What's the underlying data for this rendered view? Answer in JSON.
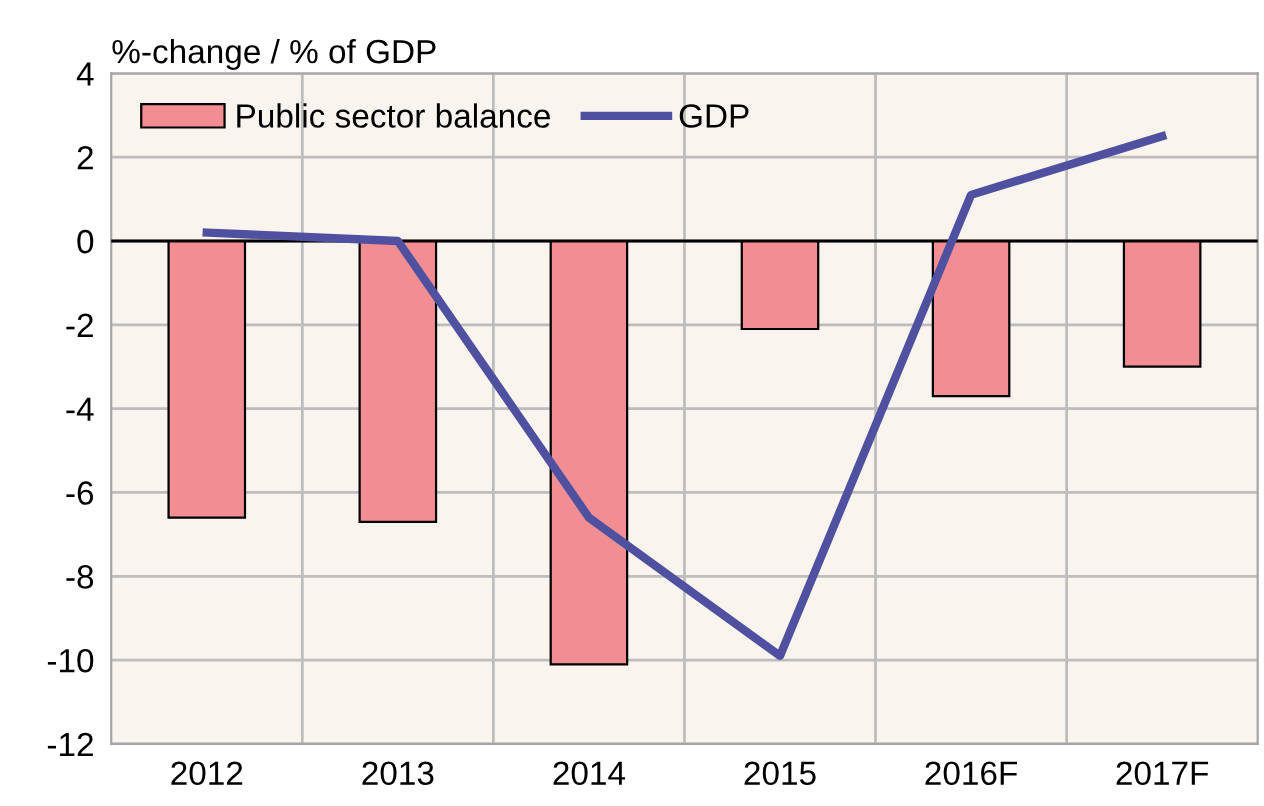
{
  "chart_data": {
    "type": "bar",
    "ylabel": "%-change / % of GDP",
    "categories": [
      "2012",
      "2013",
      "2014",
      "2015",
      "2016F",
      "2017F"
    ],
    "series": [
      {
        "name": "Public sector balance",
        "color": "#f28e93",
        "values": [
          -6.6,
          -6.7,
          -10.1,
          -2.1,
          -3.7,
          -3.0
        ]
      },
      {
        "name": "GDP",
        "type": "line",
        "color": "#4f51a0",
        "values": [
          0.2,
          0.0,
          -6.6,
          -9.9,
          1.1,
          2.5
        ]
      }
    ],
    "ylim": [
      -12,
      4
    ],
    "yticks": [
      -12,
      -10,
      -8,
      -6,
      -4,
      -2,
      0,
      2,
      4
    ],
    "ref_lines": [
      {
        "axis": "y",
        "value": 0,
        "color": "#000000"
      }
    ],
    "grid": true,
    "legend": "top left",
    "line_style": "solid",
    "marker": "none"
  }
}
